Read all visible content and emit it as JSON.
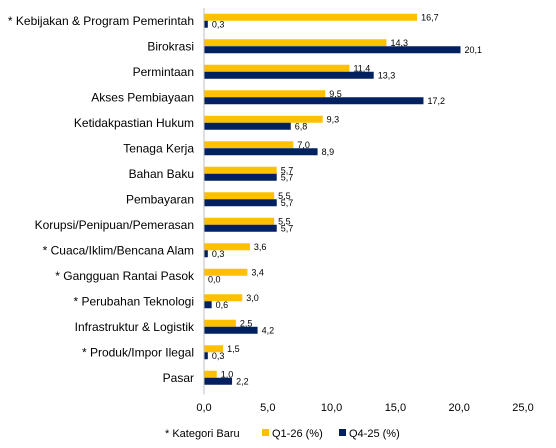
{
  "chart_data": {
    "type": "bar",
    "orientation": "horizontal",
    "categories": [
      "* Kebijakan & Program Pemerintah",
      "Birokrasi",
      "Permintaan",
      "Akses Pembiayaan",
      "Ketidakpastian Hukum",
      "Tenaga Kerja",
      "Bahan Baku",
      "Pembayaran",
      "Korupsi/Penipuan/Pemerasan",
      "* Cuaca/Iklim/Bencana Alam",
      "* Gangguan Rantai Pasok",
      "* Perubahan Teknologi",
      "Infrastruktur & Logistik",
      "* Produk/Impor Ilegal",
      "Pasar"
    ],
    "series": [
      {
        "name": "Q1-26 (%)",
        "color": "#FFC000",
        "values": [
          16.7,
          14.3,
          11.4,
          9.5,
          9.3,
          7.0,
          5.7,
          5.5,
          5.5,
          3.6,
          3.4,
          3.0,
          2.5,
          1.5,
          1.0
        ],
        "labels": [
          "16,7",
          "14,3",
          "11,4",
          "9,5",
          "9,3",
          "7,0",
          "5,7",
          "5,5",
          "5,5",
          "3,6",
          "3,4",
          "3,0",
          "2,5",
          "1,5",
          "1,0"
        ]
      },
      {
        "name": "Q4-25 (%)",
        "color": "#002060",
        "values": [
          0.3,
          20.1,
          13.3,
          17.2,
          6.8,
          8.9,
          5.7,
          5.7,
          5.7,
          0.3,
          0.0,
          0.6,
          4.2,
          0.3,
          2.2
        ],
        "labels": [
          "0,3",
          "20,1",
          "13,3",
          "17,2",
          "6,8",
          "8,9",
          "5,7",
          "5,7",
          "5,7",
          "0,3",
          "0,0",
          "0,6",
          "4,2",
          "0,3",
          "2,2"
        ]
      }
    ],
    "xlim": [
      0,
      25
    ],
    "x_ticks": [
      0,
      5,
      10,
      15,
      20,
      25
    ],
    "x_tick_labels": [
      "0,0",
      "5,0",
      "10,0",
      "15,0",
      "20,0",
      "25,0"
    ],
    "grid": false,
    "legend_position": "bottom",
    "legend_note": "* Kategori Baru"
  }
}
